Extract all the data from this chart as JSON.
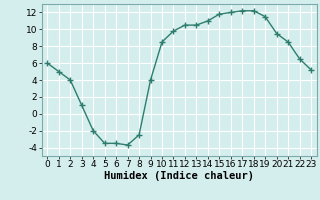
{
  "x": [
    0,
    1,
    2,
    3,
    4,
    5,
    6,
    7,
    8,
    9,
    10,
    11,
    12,
    13,
    14,
    15,
    16,
    17,
    18,
    19,
    20,
    21,
    22,
    23
  ],
  "y": [
    6,
    5,
    4,
    1,
    -2,
    -3.5,
    -3.5,
    -3.7,
    -2.5,
    4,
    8.5,
    9.8,
    10.5,
    10.5,
    11,
    11.8,
    12,
    12.2,
    12.2,
    11.5,
    9.5,
    8.5,
    6.5,
    5.2
  ],
  "line_color": "#2e7d6e",
  "marker": "+",
  "bg_color": "#d4eeed",
  "grid_color": "#ffffff",
  "xlabel": "Humidex (Indice chaleur)",
  "xlim": [
    -0.5,
    23.5
  ],
  "ylim": [
    -5,
    13
  ],
  "yticks": [
    -4,
    -2,
    0,
    2,
    4,
    6,
    8,
    10,
    12
  ],
  "xticks": [
    0,
    1,
    2,
    3,
    4,
    5,
    6,
    7,
    8,
    9,
    10,
    11,
    12,
    13,
    14,
    15,
    16,
    17,
    18,
    19,
    20,
    21,
    22,
    23
  ],
  "label_fontsize": 7.5,
  "tick_fontsize": 6.5
}
